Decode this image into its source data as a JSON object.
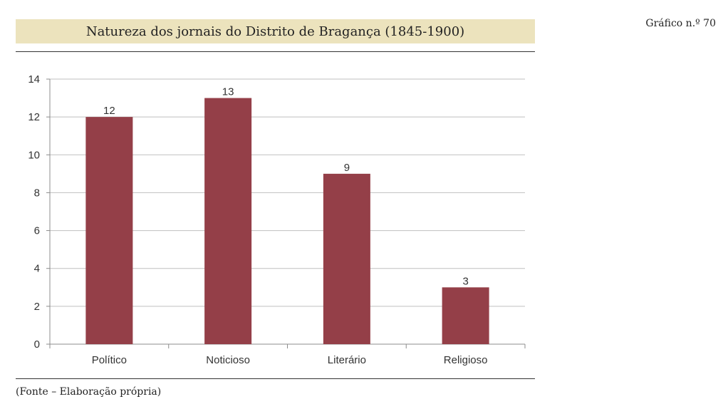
{
  "figure_label": "Gráfico n.º 70",
  "source_note": "(Fonte – Elaboração própria)",
  "colors": {
    "bar": "#943f48",
    "title_band": "#ece3bd",
    "grid": "#bfbfbf",
    "axis": "#8c8c8c"
  },
  "chart_data": {
    "type": "bar",
    "title": "Natureza dos jornais do Distrito de Bragança (1845-1900)",
    "categories": [
      "Político",
      "Noticioso",
      "Literário",
      "Religioso"
    ],
    "values": [
      12,
      13,
      9,
      3
    ],
    "data_labels": [
      "12",
      "13",
      "9",
      "3"
    ],
    "xlabel": "",
    "ylabel": "",
    "ylim": [
      0,
      14
    ],
    "yticks": [
      0,
      2,
      4,
      6,
      8,
      10,
      12,
      14
    ],
    "ytick_labels": [
      "0",
      "2",
      "4",
      "6",
      "8",
      "10",
      "12",
      "14"
    ],
    "grid": true,
    "legend": "none"
  }
}
